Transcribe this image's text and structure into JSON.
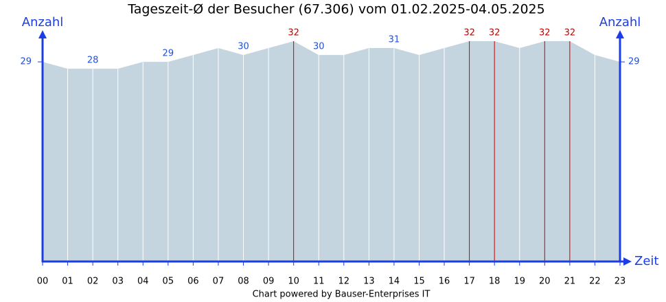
{
  "chart_data": {
    "type": "area",
    "title": "Tageszeit-Ø der Besucher (67.306) vom 01.02.2025-04.05.2025",
    "y_label": "Anzahl",
    "y2_label": "Anzahl",
    "x_label": "Zeit",
    "footer": "Chart powered by Bauser-Enterprises IT",
    "categories": [
      "00",
      "01",
      "02",
      "03",
      "04",
      "05",
      "06",
      "07",
      "08",
      "09",
      "10",
      "11",
      "12",
      "13",
      "14",
      "15",
      "16",
      "17",
      "18",
      "19",
      "20",
      "21",
      "22",
      "23"
    ],
    "values": [
      29,
      28,
      28,
      28,
      29,
      29,
      30,
      31,
      30,
      31,
      32,
      30,
      30,
      31,
      31,
      30,
      31,
      32,
      32,
      31,
      32,
      32,
      30,
      29
    ],
    "color": "#c5d5df",
    "axis_color": "#1a3de6",
    "label_color": "#1f4fd8",
    "highlight_color": "#c00000",
    "ylim": [
      0,
      33
    ],
    "yticks": [
      29
    ],
    "y2ticks": [
      29
    ]
  }
}
